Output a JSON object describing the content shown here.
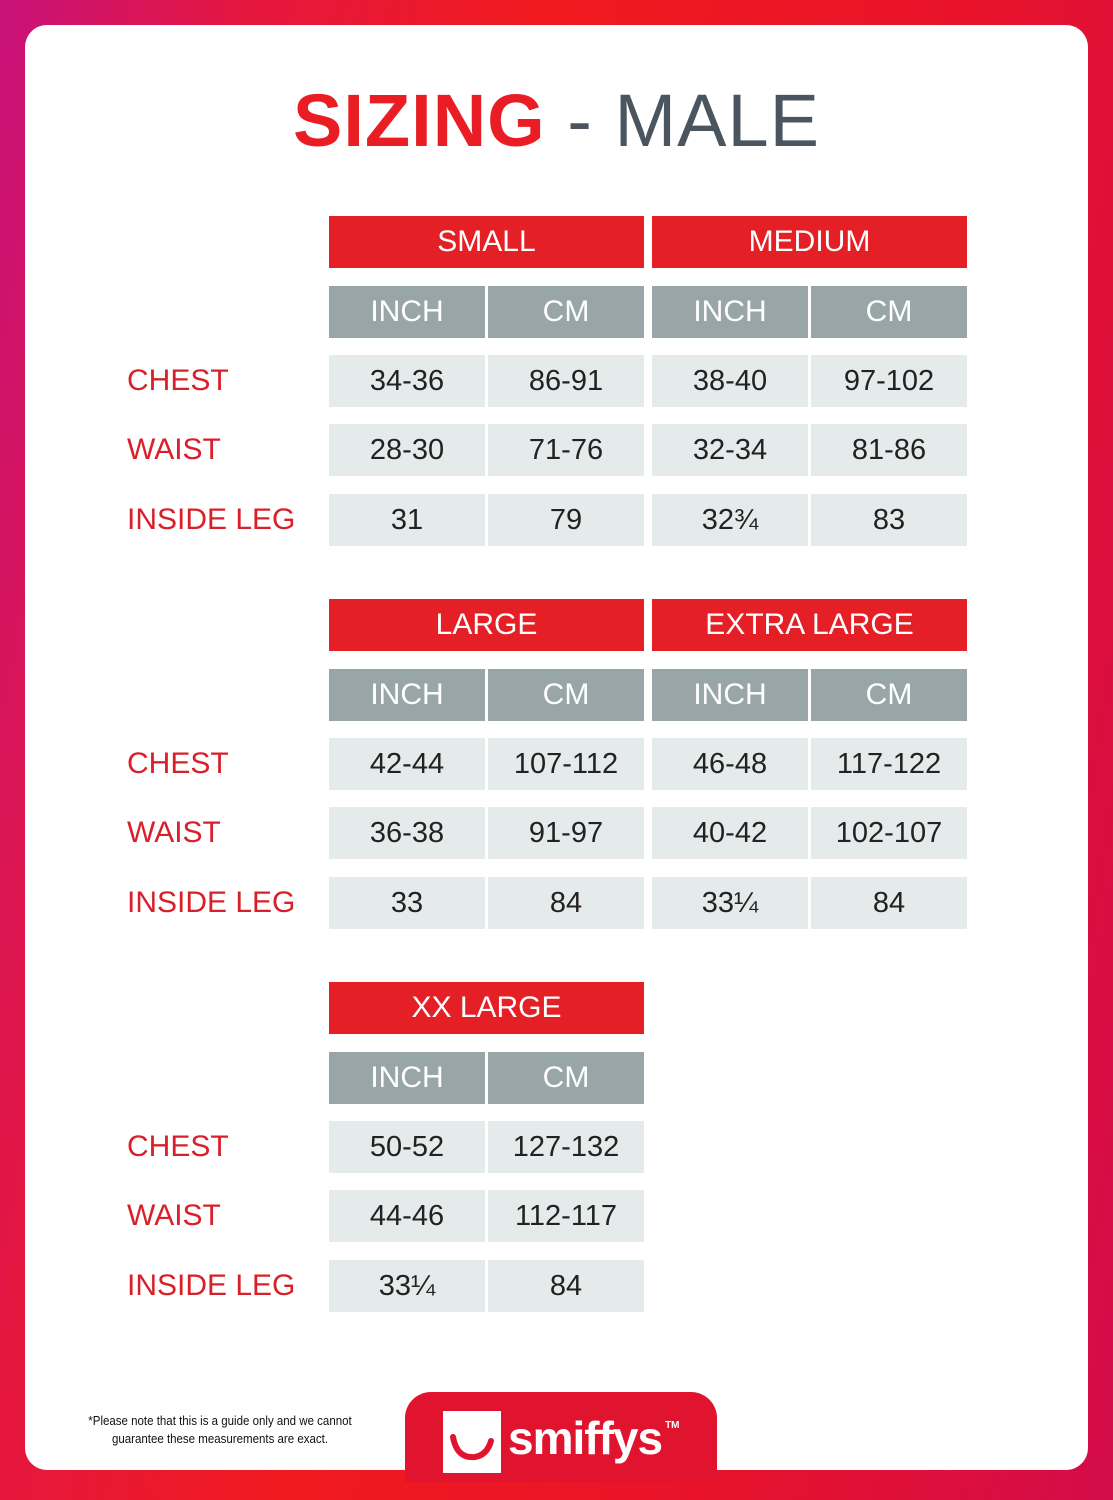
{
  "title": {
    "bold": "SIZING",
    "rest": " - MALE"
  },
  "units": [
    "INCH",
    "CM"
  ],
  "row_labels": [
    "CHEST",
    "WAIST",
    "INSIDE LEG"
  ],
  "blocks": [
    {
      "sizes": [
        {
          "name": "SMALL",
          "rows": [
            [
              "34-36",
              "86-91"
            ],
            [
              "28-30",
              "71-76"
            ],
            [
              "31",
              "79"
            ]
          ]
        },
        {
          "name": "MEDIUM",
          "rows": [
            [
              "38-40",
              "97-102"
            ],
            [
              "32-34",
              "81-86"
            ],
            [
              "32¾",
              "83"
            ]
          ]
        }
      ]
    },
    {
      "sizes": [
        {
          "name": "LARGE",
          "rows": [
            [
              "42-44",
              "107-112"
            ],
            [
              "36-38",
              "91-97"
            ],
            [
              "33",
              "84"
            ]
          ]
        },
        {
          "name": "EXTRA LARGE",
          "rows": [
            [
              "46-48",
              "117-122"
            ],
            [
              "40-42",
              "102-107"
            ],
            [
              "33¼",
              "84"
            ]
          ]
        }
      ]
    },
    {
      "sizes": [
        {
          "name": "XX LARGE",
          "rows": [
            [
              "50-52",
              "127-132"
            ],
            [
              "44-46",
              "112-117"
            ],
            [
              "33¼",
              "84"
            ]
          ]
        }
      ]
    }
  ],
  "footer": {
    "note_line1": "*Please note that this is a guide only and we cannot",
    "note_line2": "guarantee these measurements are exact.",
    "brand": "smiffys",
    "trademark": "TM"
  },
  "colors": {
    "accent": "#e41f26",
    "unit_header": "#98a6a7",
    "cell": "#e5eaea",
    "label": "#d9202a"
  }
}
